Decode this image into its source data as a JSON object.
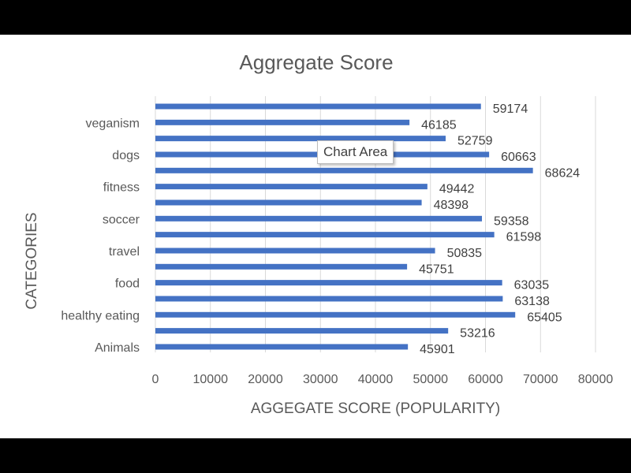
{
  "chart_data": {
    "type": "bar",
    "orientation": "horizontal",
    "title": "Aggregate Score",
    "xlabel": "AGGEGATE SCORE (POPULARITY)",
    "ylabel": "CATEGORIES",
    "xlim": [
      0,
      80000
    ],
    "x_ticks": [
      "0",
      "10000",
      "20000",
      "30000",
      "40000",
      "50000",
      "60000",
      "70000",
      "80000"
    ],
    "category_labels": [
      "veganism",
      "dogs",
      "fitness",
      "soccer",
      "travel",
      "food",
      "healthy eating",
      "Animals"
    ],
    "bars": [
      {
        "label": "",
        "value": 59174
      },
      {
        "label": "veganism",
        "value": 46185
      },
      {
        "label": "",
        "value": 52759
      },
      {
        "label": "dogs",
        "value": 60663
      },
      {
        "label": "",
        "value": 68624
      },
      {
        "label": "fitness",
        "value": 49442
      },
      {
        "label": "",
        "value": 48398
      },
      {
        "label": "soccer",
        "value": 59358
      },
      {
        "label": "",
        "value": 61598
      },
      {
        "label": "travel",
        "value": 50835
      },
      {
        "label": "",
        "value": 45751
      },
      {
        "label": "food",
        "value": 63035
      },
      {
        "label": "",
        "value": 63138
      },
      {
        "label": "healthy eating",
        "value": 65405
      },
      {
        "label": "",
        "value": 53216
      },
      {
        "label": "Animals",
        "value": 45901
      }
    ],
    "data_labels": true,
    "grid": "vertical",
    "legend": "none",
    "bar_color": "#4472C4"
  },
  "tooltip": {
    "text": "Chart Area"
  }
}
